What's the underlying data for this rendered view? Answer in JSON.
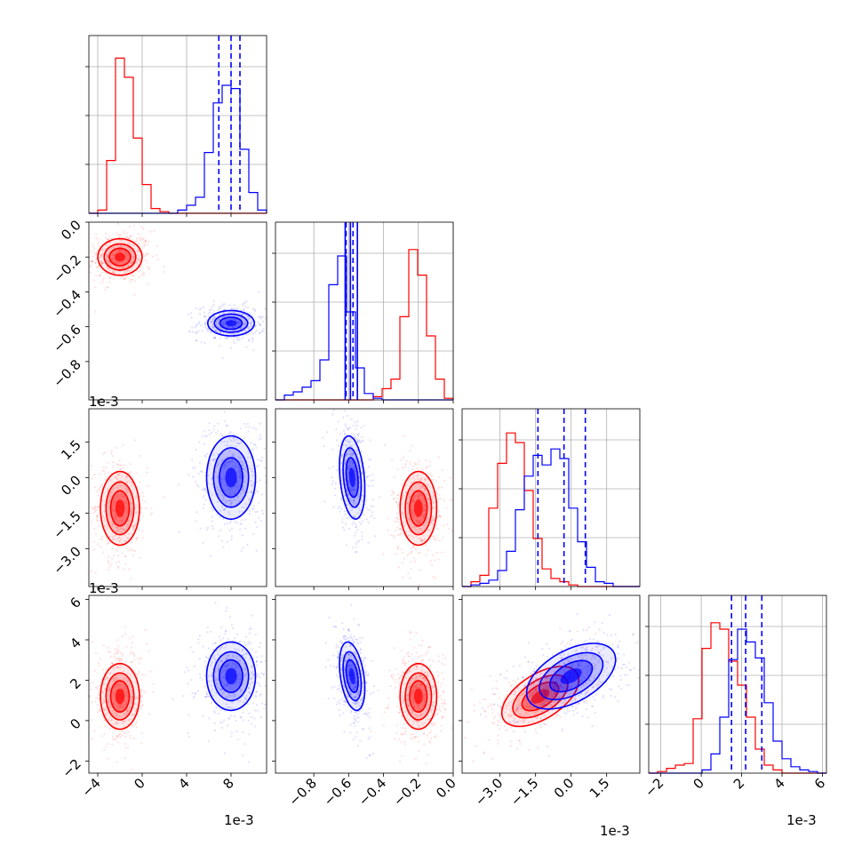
{
  "colors": {
    "series_a": "#ff0000",
    "series_b": "#0000ff",
    "grid": "#b0b0b0"
  },
  "offset_labels": {
    "p10": "1e-3",
    "p20": "1e-3",
    "x0": "1e-3",
    "x2": "1e-3",
    "x3": "1e-3"
  },
  "chart_data": {
    "type": "scatter",
    "figure_type": "corner plot (pairwise histograms and 2-D density contours)",
    "grid": true,
    "series": [
      {
        "color": "#ff0000",
        "means": [
          -2.0,
          -0.2,
          -1.3,
          1.2
        ]
      },
      {
        "color": "#0000ff",
        "means": [
          8.0,
          -0.58,
          0.0,
          2.2
        ],
        "quantile_lines": [
          [
            6.9,
            8.0,
            8.8
          ],
          [
            -0.62,
            -0.59,
            -0.55
          ],
          [
            -1.4,
            -0.3,
            0.6
          ],
          [
            1.5,
            2.2,
            3.0
          ]
        ]
      }
    ],
    "parameters": [
      {
        "range": [
          -4.8,
          11.2
        ],
        "ticks": [
          "−4",
          "0",
          "4",
          "8"
        ],
        "tick_values": [
          -4,
          0,
          4,
          8
        ],
        "offset": "1e-3"
      },
      {
        "range": [
          -1.02,
          0.0
        ],
        "ticks": [
          "−0.8",
          "−0.6",
          "−0.4",
          "−0.2",
          "0.0"
        ],
        "tick_values": [
          -0.8,
          -0.6,
          -0.4,
          -0.2,
          0.0
        ],
        "offset": ""
      },
      {
        "range": [
          -4.6,
          2.9
        ],
        "ticks": [
          "−3.0",
          "−1.5",
          "0.0",
          "1.5"
        ],
        "tick_values": [
          -3.0,
          -1.5,
          0.0,
          1.5
        ],
        "offset": "1e-3"
      },
      {
        "range": [
          -2.6,
          6.2
        ],
        "ticks": [
          "−2",
          "0",
          "2",
          "4",
          "6"
        ],
        "tick_values": [
          -2,
          0,
          2,
          4,
          6
        ],
        "offset": "1e-3"
      }
    ],
    "histograms": [
      {
        "param": 0,
        "red": [
          0,
          0.02,
          0.33,
          0.97,
          0.85,
          0.47,
          0.18,
          0.03,
          0.01,
          0,
          0,
          0,
          0,
          0,
          0,
          0,
          0,
          0,
          0,
          0
        ],
        "blue": [
          0,
          0,
          0,
          0,
          0,
          0,
          0,
          0,
          0,
          0,
          0.02,
          0.05,
          0.1,
          0.38,
          0.69,
          0.8,
          0.78,
          0.4,
          0.13,
          0.02
        ]
      },
      {
        "param": 1,
        "red": [
          0,
          0,
          0,
          0,
          0,
          0,
          0,
          0,
          0,
          0,
          0,
          0.02,
          0.07,
          0.13,
          0.52,
          0.94,
          0.78,
          0.4,
          0.13,
          0.01
        ],
        "blue": [
          0,
          0.03,
          0.05,
          0.08,
          0.12,
          0.25,
          0.72,
          0.9,
          0.55,
          0.2,
          0.04,
          0.01,
          0,
          0,
          0,
          0,
          0,
          0,
          0,
          0
        ]
      },
      {
        "param": 2,
        "red": [
          0,
          0.03,
          0.07,
          0.49,
          0.77,
          0.96,
          0.9,
          0.6,
          0.3,
          0.11,
          0.05,
          0.03,
          0.01,
          0,
          0,
          0,
          0,
          0,
          0,
          0
        ],
        "blue": [
          0,
          0.01,
          0.02,
          0.04,
          0.1,
          0.22,
          0.48,
          0.69,
          0.82,
          0.76,
          0.86,
          0.8,
          0.49,
          0.28,
          0.12,
          0.03,
          0.02,
          0,
          0,
          0
        ]
      },
      {
        "param": 3,
        "red": [
          0,
          0.01,
          0.03,
          0.05,
          0.06,
          0.34,
          0.78,
          0.94,
          0.9,
          0.7,
          0.55,
          0.35,
          0.15,
          0.05,
          0.02,
          0,
          0,
          0,
          0,
          0
        ],
        "blue": [
          0,
          0,
          0,
          0,
          0,
          0,
          0.02,
          0.12,
          0.35,
          0.71,
          0.9,
          0.82,
          0.72,
          0.44,
          0.2,
          0.09,
          0.04,
          0.02,
          0.01,
          0
        ]
      }
    ],
    "pairs": [
      {
        "x": 0,
        "y": 1,
        "red": {
          "cov": [
            [
              0.9,
              0.0
            ],
            [
              0.0,
              0.0025
            ]
          ]
        },
        "blue": {
          "cov": [
            [
              1.0,
              0.0
            ],
            [
              0.0,
              0.0012
            ]
          ]
        }
      },
      {
        "x": 0,
        "y": 2,
        "red": {
          "cov": [
            [
              0.7,
              0.0
            ],
            [
              0.0,
              0.55
            ]
          ]
        },
        "blue": {
          "cov": [
            [
              1.1,
              0.0
            ],
            [
              0.0,
              0.7
            ]
          ]
        }
      },
      {
        "x": 1,
        "y": 2,
        "red": {
          "cov": [
            [
              0.0025,
              0.0
            ],
            [
              0.0,
              0.55
            ]
          ]
        },
        "blue": {
          "cov": [
            [
              0.0012,
              -0.008
            ],
            [
              -0.008,
              0.7
            ]
          ]
        }
      },
      {
        "x": 0,
        "y": 3,
        "red": {
          "cov": [
            [
              0.7,
              0.0
            ],
            [
              0.0,
              0.6
            ]
          ]
        },
        "blue": {
          "cov": [
            [
              1.1,
              0.0
            ],
            [
              0.0,
              0.65
            ]
          ]
        }
      },
      {
        "x": 1,
        "y": 3,
        "red": {
          "cov": [
            [
              0.0025,
              0.0
            ],
            [
              0.0,
              0.6
            ]
          ]
        },
        "blue": {
          "cov": [
            [
              0.0012,
              -0.01
            ],
            [
              -0.01,
              0.65
            ]
          ]
        }
      },
      {
        "x": 2,
        "y": 3,
        "red": {
          "cov": [
            [
              0.6,
              0.3
            ],
            [
              0.3,
              0.5
            ]
          ]
        },
        "blue": {
          "cov": [
            [
              0.8,
              0.35
            ],
            [
              0.35,
              0.6
            ]
          ]
        }
      }
    ]
  }
}
